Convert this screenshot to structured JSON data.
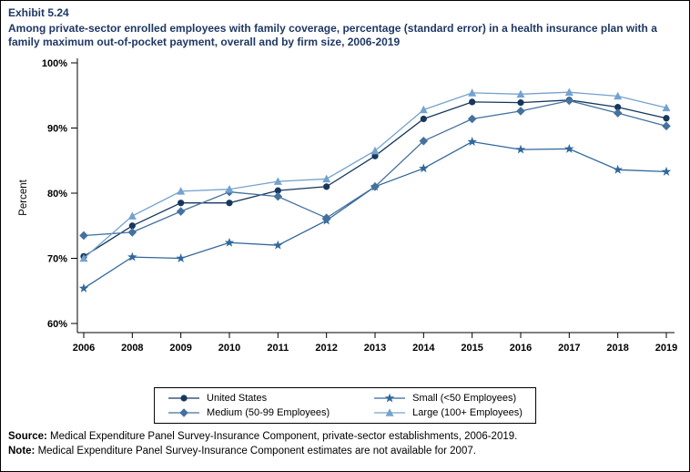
{
  "header": {
    "exhibit_label": "Exhibit 5.24",
    "title": "Among private-sector enrolled employees with family coverage, percentage (standard error) in a health insurance plan with a family maximum out-of-pocket payment, overall and by firm size, 2006-2019"
  },
  "footer": {
    "source_label": "Source:",
    "source_text": " Medical Expenditure Panel Survey-Insurance Component, private-sector establishments, 2006-2019.",
    "note_label": "Note:",
    "note_text": " Medical Expenditure Panel Survey-Insurance Component estimates are not available for 2007."
  },
  "chart_data": {
    "type": "line",
    "title": "Percentage in a health insurance plan with a family maximum out-of-pocket payment, overall and by firm size, 2006-2019",
    "xlabel": "",
    "ylabel": "Percent",
    "ylim": [
      60,
      100
    ],
    "yticks": [
      60,
      70,
      80,
      90,
      100
    ],
    "ytick_labels": [
      "60%",
      "70%",
      "80%",
      "90%",
      "100%"
    ],
    "categories": [
      "2006",
      "2008",
      "2009",
      "2010",
      "2011",
      "2012",
      "2013",
      "2014",
      "2015",
      "2016",
      "2017",
      "2018",
      "2019"
    ],
    "grid": false,
    "legend_position": "bottom",
    "note": "2007 estimates not available",
    "series": [
      {
        "name": "United States",
        "marker": "circle",
        "color": "#17375E",
        "values": [
          70.3,
          75.0,
          78.5,
          78.5,
          80.4,
          81.0,
          85.7,
          91.4,
          94.0,
          93.9,
          94.3,
          93.2,
          91.5
        ]
      },
      {
        "name": "Small (<50 Employees)",
        "marker": "star",
        "color": "#31679B",
        "values": [
          65.4,
          70.2,
          70.0,
          72.4,
          72.0,
          75.8,
          81.0,
          83.8,
          87.9,
          86.7,
          86.8,
          83.6,
          83.3
        ]
      },
      {
        "name": "Medium (50-99 Employees)",
        "marker": "diamond",
        "color": "#44719E",
        "values": [
          73.5,
          74.0,
          77.2,
          80.2,
          79.5,
          76.2,
          81.0,
          88.0,
          91.4,
          92.6,
          94.2,
          92.3,
          90.3
        ]
      },
      {
        "name": "Large (100+ Employees)",
        "marker": "triangle",
        "color": "#74A2CE",
        "values": [
          70.0,
          76.5,
          80.3,
          80.6,
          81.8,
          82.2,
          86.5,
          92.8,
          95.4,
          95.2,
          95.5,
          94.9,
          93.1
        ]
      }
    ]
  }
}
